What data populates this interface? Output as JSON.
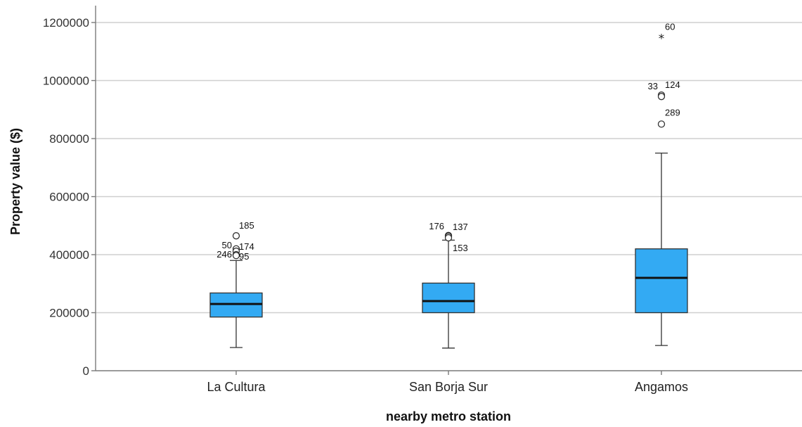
{
  "chart_data": {
    "type": "boxplot",
    "xlabel": "nearby metro station",
    "ylabel": "Property value ($)",
    "ylim": [
      0,
      1200000
    ],
    "yticks": [
      0,
      200000,
      400000,
      600000,
      800000,
      1000000,
      1200000
    ],
    "ytick_labels": [
      "0",
      "200000",
      "400000",
      "600000",
      "800000",
      "1000000",
      "1200000"
    ],
    "grid": true,
    "box_color": "#33aaf3",
    "groups": [
      {
        "category": "La Cultura",
        "whisker_low": 80000,
        "q1": 185000,
        "median": 230000,
        "q3": 268000,
        "whisker_high": 380000,
        "outliers": [
          {
            "id": "185",
            "value": 465000,
            "marker": "circle"
          },
          {
            "id": "50",
            "value": 420000,
            "marker": "circle"
          },
          {
            "id": "174",
            "value": 412000,
            "marker": "circle"
          },
          {
            "id": "246",
            "value": 400000,
            "marker": "circle"
          },
          {
            "id": "95",
            "value": 397000,
            "marker": "circle"
          }
        ]
      },
      {
        "category": "San Borja Sur",
        "whisker_low": 78000,
        "q1": 200000,
        "median": 240000,
        "q3": 302000,
        "whisker_high": 450000,
        "outliers": [
          {
            "id": "176",
            "value": 466000,
            "marker": "circle"
          },
          {
            "id": "137",
            "value": 463000,
            "marker": "circle"
          },
          {
            "id": "153",
            "value": 458000,
            "marker": "circle"
          }
        ]
      },
      {
        "category": "Angamos",
        "whisker_low": 87000,
        "q1": 200000,
        "median": 320000,
        "q3": 420000,
        "whisker_high": 750000,
        "outliers": [
          {
            "id": "60",
            "value": 1150000,
            "marker": "star"
          },
          {
            "id": "33",
            "value": 950000,
            "marker": "circle"
          },
          {
            "id": "124",
            "value": 945000,
            "marker": "circle"
          },
          {
            "id": "289",
            "value": 850000,
            "marker": "circle"
          }
        ]
      }
    ]
  }
}
